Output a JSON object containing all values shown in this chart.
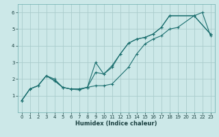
{
  "title": "",
  "xlabel": "Humidex (Indice chaleur)",
  "bg_color": "#cce8e8",
  "grid_color": "#aacccc",
  "line_color": "#1a6e6e",
  "xlim": [
    -0.5,
    23.5
  ],
  "ylim": [
    0.0,
    6.5
  ],
  "xticks": [
    0,
    1,
    2,
    3,
    4,
    5,
    6,
    7,
    8,
    9,
    10,
    11,
    12,
    13,
    14,
    15,
    16,
    17,
    18,
    19,
    20,
    21,
    22,
    23
  ],
  "yticks": [
    1,
    2,
    3,
    4,
    5,
    6
  ],
  "series": [
    {
      "x": [
        0,
        1,
        2,
        3,
        4,
        5,
        6,
        7,
        8,
        9,
        10,
        11,
        13,
        14,
        15,
        16,
        17,
        18,
        19,
        21,
        22,
        23
      ],
      "y": [
        0.7,
        1.4,
        1.6,
        2.2,
        2.0,
        1.5,
        1.4,
        1.4,
        1.5,
        1.6,
        1.6,
        1.7,
        2.7,
        3.5,
        4.1,
        4.4,
        4.6,
        5.0,
        5.1,
        5.8,
        6.0,
        4.6
      ]
    },
    {
      "x": [
        0,
        1,
        2,
        3,
        4,
        5,
        6,
        7,
        8,
        9,
        10,
        11,
        12,
        13,
        14,
        15,
        16,
        17,
        18,
        21,
        23
      ],
      "y": [
        0.7,
        1.4,
        1.6,
        2.2,
        1.9,
        1.5,
        1.4,
        1.4,
        1.5,
        3.0,
        2.3,
        2.7,
        3.5,
        4.15,
        4.4,
        4.5,
        4.7,
        5.1,
        5.8,
        5.8,
        4.7
      ]
    },
    {
      "x": [
        0,
        1,
        2,
        3,
        4,
        5,
        6,
        7,
        8,
        9,
        10,
        11,
        12,
        13,
        14,
        15,
        16,
        17,
        18,
        21,
        23
      ],
      "y": [
        0.7,
        1.4,
        1.6,
        2.2,
        1.9,
        1.5,
        1.4,
        1.35,
        1.5,
        2.4,
        2.3,
        2.8,
        3.5,
        4.15,
        4.4,
        4.5,
        4.7,
        5.1,
        5.8,
        5.8,
        4.7
      ]
    }
  ]
}
